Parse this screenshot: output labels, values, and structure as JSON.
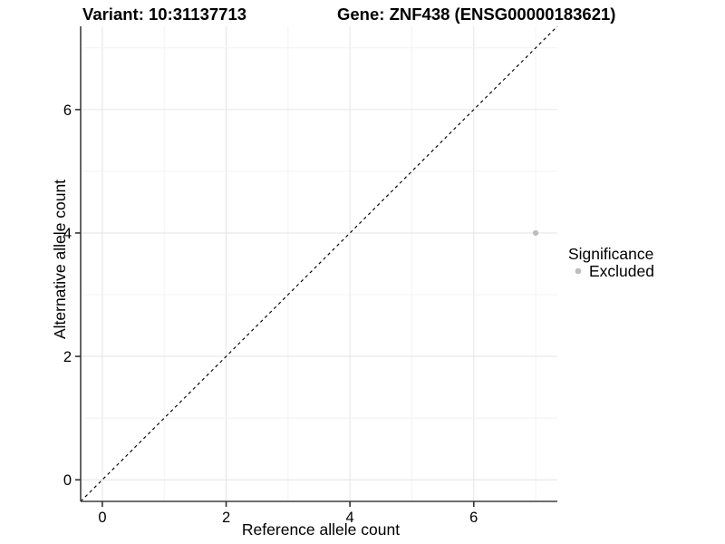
{
  "titles": {
    "variant": "Variant: 10:31137713",
    "gene": "Gene: ZNF438 (ENSG00000183621)"
  },
  "axes": {
    "x_label": "Reference allele count",
    "y_label": "Alternative allele count"
  },
  "legend": {
    "title": "Significance",
    "items": [
      {
        "label": "Excluded",
        "color": "#bdbdbd"
      }
    ]
  },
  "chart_data": {
    "type": "scatter",
    "title": "Variant: 10:31137713 — Gene: ZNF438 (ENSG00000183621)",
    "xlabel": "Reference allele count",
    "ylabel": "Alternative allele count",
    "xlim": [
      -0.35,
      7.35
    ],
    "ylim": [
      -0.35,
      7.35
    ],
    "x_ticks": [
      0,
      2,
      4,
      6
    ],
    "y_ticks": [
      0,
      2,
      4,
      6
    ],
    "grid": "on",
    "grid_line_spacing": 1,
    "legend_position": "right",
    "series": [
      {
        "name": "Excluded",
        "color": "#bdbdbd",
        "points": [
          {
            "x": 7,
            "y": 4
          }
        ]
      }
    ],
    "reference_line": {
      "type": "identity y=x",
      "style": "dashed",
      "color": "#000000"
    }
  },
  "colors": {
    "background": "#ffffff",
    "grid_major": "#e6e6e6",
    "grid_minor": "#f1f1f1",
    "axis_line": "#3f3f3f",
    "tick_mark": "#333333",
    "point": "#bdbdbd",
    "text": "#000000"
  }
}
